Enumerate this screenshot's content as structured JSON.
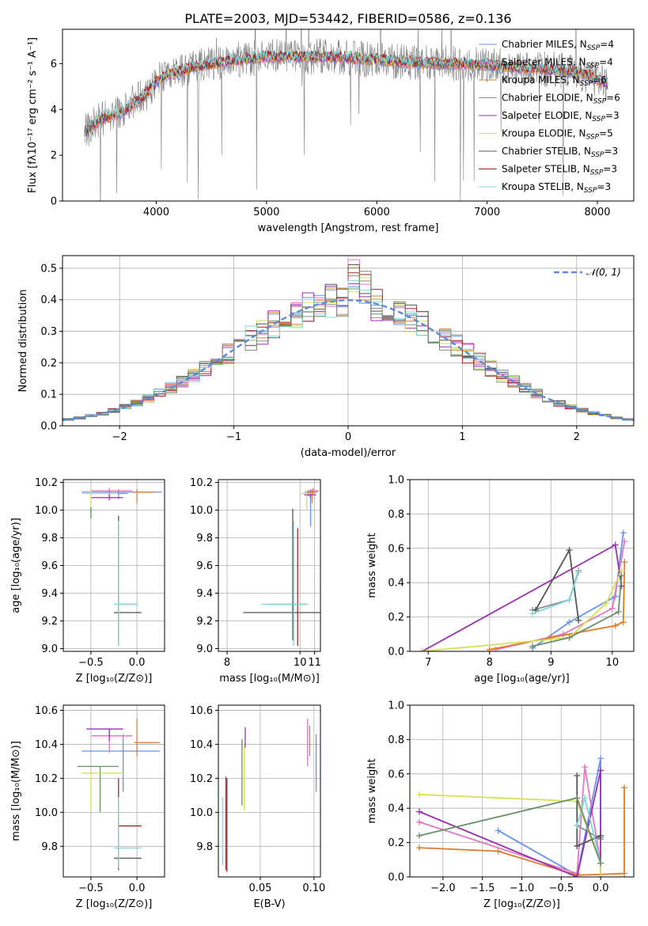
{
  "title": "PLATE=2003, MJD=53442, FIBERID=0586, z=0.136",
  "chart_data": [
    {
      "id": "spectrum",
      "type": "line",
      "xlabel": "wavelength [Angstrom, rest frame]",
      "ylabel": "Flux [fλ10⁻¹⁷ erg cm⁻² s⁻¹ A⁻¹]",
      "xlim": [
        3150,
        8330
      ],
      "ylim": [
        0,
        7.5
      ],
      "xticks": [
        4000,
        5000,
        6000,
        7000,
        8000
      ],
      "yticks": [
        0,
        2,
        4,
        6
      ],
      "grid": false,
      "legend_loc": "top-right",
      "continuum": {
        "x": [
          3350,
          3500,
          3600,
          3700,
          3800,
          3900,
          4000,
          4100,
          4300,
          4500,
          4800,
          5000,
          5300,
          5600,
          5900,
          6200,
          6500,
          6800,
          7100,
          7400,
          7700,
          7900,
          8100
        ],
        "y": [
          3.0,
          3.6,
          3.7,
          3.9,
          4.3,
          4.6,
          5.2,
          5.5,
          5.8,
          6.0,
          6.2,
          6.3,
          6.3,
          6.3,
          6.2,
          6.1,
          6.0,
          6.0,
          5.9,
          5.8,
          5.7,
          5.5,
          5.1
        ]
      },
      "series": [
        {
          "name": "Chabrier MILES, N",
          "sub": "SSP",
          "suffix": "=4",
          "color": "#6495ed"
        },
        {
          "name": "Salpeter MILES, N",
          "sub": "SSP",
          "suffix": "=4",
          "color": "#e377c2"
        },
        {
          "name": "Kroupa MILES, N",
          "sub": "SSP",
          "suffix": "=6",
          "color": "#e07b28"
        },
        {
          "name": "Chabrier ELODIE, N",
          "sub": "SSP",
          "suffix": "=6",
          "color": "#8c8c8c"
        },
        {
          "name": "Salpeter ELODIE, N",
          "sub": "SSP",
          "suffix": "=3",
          "color": "#9b30b0"
        },
        {
          "name": "Kroupa ELODIE, N",
          "sub": "SSP",
          "suffix": "=5",
          "color": "#d4e157"
        },
        {
          "name": "Chabrier STELIB, N",
          "sub": "SSP",
          "suffix": "=3",
          "color": "#555555"
        },
        {
          "name": "Salpeter STELIB, N",
          "sub": "SSP",
          "suffix": "=3",
          "color": "#b22222"
        },
        {
          "name": "Kroupa STELIB, N",
          "sub": "SSP",
          "suffix": "=3",
          "color": "#7fd8d8"
        }
      ]
    },
    {
      "id": "residuals",
      "type": "line",
      "xlabel": "(data-model)/error",
      "ylabel": "Normed distribution",
      "xlim": [
        -2.5,
        2.5
      ],
      "ylim": [
        0,
        0.54
      ],
      "xticks": [
        -2,
        -1,
        0,
        1,
        2
      ],
      "yticks": [
        0.0,
        0.1,
        0.2,
        0.3,
        0.4,
        0.5
      ],
      "grid": true,
      "legend_loc": "top-right",
      "legend": "𝒩(0, 1)",
      "bin_width": 0.1,
      "colors": [
        "#6495ed",
        "#e377c2",
        "#e07b28",
        "#8c8c8c",
        "#9b30b0",
        "#d4e157",
        "#555555",
        "#b22222",
        "#7fd8d8",
        "#6a8f6a"
      ]
    },
    {
      "id": "age_vs_Z",
      "type": "scatter",
      "xlabel": "Z [log₁₀(Z/Z⊙)]",
      "ylabel": "age  [log₁₀(age/yr)]",
      "xlim": [
        -0.8,
        0.3
      ],
      "ylim": [
        8.98,
        10.22
      ],
      "xticks": [
        -0.5,
        0.0
      ],
      "yticks": [
        9.0,
        9.2,
        9.4,
        9.6,
        9.8,
        10.0,
        10.2
      ],
      "grid": true,
      "errorbars": [
        {
          "x": -0.2,
          "y": 10.13,
          "xerr": [
            0.4,
            0.47
          ],
          "yerr": [
            0.05,
            0.02
          ],
          "color": "#6495ed"
        },
        {
          "x": -0.3,
          "y": 10.14,
          "xerr": [
            0.2,
            0.25
          ],
          "yerr": [
            0.02,
            0.02
          ],
          "color": "#e377c2"
        },
        {
          "x": 0.0,
          "y": 10.13,
          "xerr": [
            0.05,
            0.2
          ],
          "yerr": [
            0.08,
            0.02
          ],
          "color": "#e07b28"
        },
        {
          "x": -0.3,
          "y": 10.12,
          "xerr": [
            0.2,
            0.2
          ],
          "yerr": [
            0.02,
            0.02
          ],
          "color": "#8c8c8c"
        },
        {
          "x": -0.3,
          "y": 10.09,
          "xerr": [
            0.2,
            0.15
          ],
          "yerr": [
            0.02,
            0.02
          ],
          "color": "#9b30b0"
        },
        {
          "x": -0.5,
          "y": 10.12,
          "xerr": [
            0.1,
            0.3
          ],
          "yerr": [
            0.18,
            0.02
          ],
          "color": "#d4e157"
        },
        {
          "x": -0.2,
          "y": 9.26,
          "xerr": [
            0.05,
            0.25
          ],
          "yerr": [
            0.2,
            0.7
          ],
          "color": "#555555"
        },
        {
          "x": -0.2,
          "y": 9.32,
          "xerr": [
            0.0,
            0.2
          ],
          "yerr": [
            0.3,
            0.55
          ],
          "color": "#b22222"
        },
        {
          "x": -0.2,
          "y": 9.32,
          "xerr": [
            0.05,
            0.2
          ],
          "yerr": [
            0.3,
            0.6
          ],
          "color": "#7fd8d8"
        },
        {
          "x": -0.5,
          "y": 9.98,
          "xerr": [
            0.0,
            0.0
          ],
          "yerr": [
            0.04,
            0.04
          ],
          "color": "#6a8f6a"
        }
      ]
    },
    {
      "id": "age_vs_mass",
      "type": "scatter",
      "xlabel": "mass [log₁₀(M/M⊙)]",
      "ylabel": "",
      "xlim": [
        7.2,
        10.7
      ],
      "ylim": [
        8.98,
        10.22
      ],
      "xticks": [
        7.5,
        10.0,
        10.5
      ],
      "yticks": [
        9.0,
        9.2,
        9.4,
        9.6,
        9.8,
        10.0,
        10.2
      ],
      "grid": true,
      "errorbars": [
        {
          "x": 10.36,
          "y": 10.13,
          "xerr": [
            0.2,
            0.2
          ],
          "yerr": [
            0.25,
            0.02
          ],
          "color": "#6495ed"
        },
        {
          "x": 10.45,
          "y": 10.14,
          "xerr": [
            0.2,
            0.2
          ],
          "yerr": [
            0.02,
            0.02
          ],
          "color": "#e377c2"
        },
        {
          "x": 10.41,
          "y": 10.13,
          "xerr": [
            0.2,
            0.2
          ],
          "yerr": [
            0.08,
            0.02
          ],
          "color": "#e07b28"
        },
        {
          "x": 10.27,
          "y": 10.12,
          "xerr": [
            0.2,
            0.2
          ],
          "yerr": [
            0.02,
            0.02
          ],
          "color": "#8c8c8c"
        },
        {
          "x": 10.35,
          "y": 10.11,
          "xerr": [
            0.2,
            0.2
          ],
          "yerr": [
            0.02,
            0.02
          ],
          "color": "#9b30b0"
        },
        {
          "x": 10.23,
          "y": 10.12,
          "xerr": [
            0.2,
            0.2
          ],
          "yerr": [
            0.12,
            0.02
          ],
          "color": "#d4e157"
        },
        {
          "x": 9.75,
          "y": 9.26,
          "xerr": [
            1.7,
            1.5
          ],
          "yerr": [
            0.2,
            0.75
          ],
          "color": "#555555"
        },
        {
          "x": 9.92,
          "y": 9.32,
          "xerr": [
            1.0,
            0.3
          ],
          "yerr": [
            0.3,
            0.55
          ],
          "color": "#b22222"
        },
        {
          "x": 9.78,
          "y": 9.32,
          "xerr": [
            1.1,
            0.5
          ],
          "yerr": [
            0.3,
            0.6
          ],
          "color": "#7fd8d8"
        }
      ]
    },
    {
      "id": "weight_vs_age",
      "type": "line",
      "xlabel": "age  [log₁₀(age/yr)]",
      "ylabel": "mass weight",
      "xlim": [
        6.7,
        10.35
      ],
      "ylim": [
        0,
        1
      ],
      "xticks": [
        7,
        8,
        9,
        10
      ],
      "yticks": [
        0.0,
        0.2,
        0.4,
        0.6,
        0.8,
        1.0
      ],
      "grid": true,
      "series": [
        {
          "color": "#6495ed",
          "x": [
            8.7,
            9.3,
            10.05,
            10.18
          ],
          "y": [
            0.02,
            0.17,
            0.32,
            0.69
          ]
        },
        {
          "color": "#e377c2",
          "x": [
            8.1,
            9.2,
            10.0,
            10.2
          ],
          "y": [
            0.01,
            0.1,
            0.25,
            0.64
          ]
        },
        {
          "color": "#e07b28",
          "x": [
            8.0,
            9.0,
            10.05,
            10.18,
            10.2
          ],
          "y": [
            0.01,
            0.08,
            0.15,
            0.17,
            0.52
          ]
        },
        {
          "color": "#8c8c8c",
          "x": [
            8.7,
            9.3,
            9.45
          ],
          "y": [
            0.24,
            0.3,
            0.47
          ]
        },
        {
          "color": "#9b30b0",
          "x": [
            6.9,
            10.05,
            10.15
          ],
          "y": [
            0.0,
            0.62,
            0.38
          ]
        },
        {
          "color": "#d4e157",
          "x": [
            6.9,
            9.3,
            9.9,
            10.15
          ],
          "y": [
            0.0,
            0.08,
            0.28,
            0.47
          ]
        },
        {
          "color": "#555555",
          "x": [
            8.75,
            9.3,
            9.45
          ],
          "y": [
            0.24,
            0.59,
            0.18
          ]
        },
        {
          "color": "#7fd8d8",
          "x": [
            8.7,
            9.3,
            9.45
          ],
          "y": [
            0.22,
            0.3,
            0.46
          ]
        },
        {
          "color": "#6a8f6a",
          "x": [
            8.7,
            9.3,
            10.1,
            10.15
          ],
          "y": [
            0.03,
            0.08,
            0.23,
            0.44
          ]
        }
      ]
    },
    {
      "id": "mass_vs_Z",
      "type": "scatter",
      "xlabel": "Z [log₁₀(Z/Z⊙)]",
      "ylabel": "mass [log₁₀(M/M⊙)]",
      "xlim": [
        -0.8,
        0.3
      ],
      "ylim": [
        9.62,
        10.63
      ],
      "xticks": [
        -0.5,
        0.0
      ],
      "yticks": [
        9.8,
        10.0,
        10.2,
        10.4,
        10.6
      ],
      "grid": true,
      "errorbars": [
        {
          "x": -0.15,
          "y": 10.36,
          "xerr": [
            0.45,
            0.4
          ],
          "yerr": [
            0.24,
            0.1
          ],
          "color": "#6495ed"
        },
        {
          "x": -0.3,
          "y": 10.45,
          "xerr": [
            0.2,
            0.25
          ],
          "yerr": [
            0.1,
            0.04
          ],
          "color": "#e377c2"
        },
        {
          "x": 0.0,
          "y": 10.41,
          "xerr": [
            0.03,
            0.25
          ],
          "yerr": [
            0.08,
            0.14
          ],
          "color": "#e07b28"
        },
        {
          "x": -0.4,
          "y": 10.27,
          "xerr": [
            0.25,
            0.2
          ],
          "yerr": [
            0.27,
            0.0
          ],
          "color": "#6a8f6a"
        },
        {
          "x": -0.3,
          "y": 10.49,
          "xerr": [
            0.25,
            0.15
          ],
          "yerr": [
            0.07,
            0.0
          ],
          "color": "#9b30b0"
        },
        {
          "x": -0.5,
          "y": 10.23,
          "xerr": [
            0.1,
            0.35
          ],
          "yerr": [
            0.22,
            0.0
          ],
          "color": "#d4e157"
        },
        {
          "x": -0.2,
          "y": 9.73,
          "xerr": [
            0.05,
            0.25
          ],
          "yerr": [
            0.06,
            0.0
          ],
          "color": "#555555"
        },
        {
          "x": -0.2,
          "y": 9.92,
          "xerr": [
            0.0,
            0.25
          ],
          "yerr": [
            0.26,
            0.28
          ],
          "color": "#b22222"
        },
        {
          "x": -0.2,
          "y": 9.79,
          "xerr": [
            0.05,
            0.25
          ],
          "yerr": [
            0.12,
            0.3
          ],
          "color": "#7fd8d8"
        }
      ]
    },
    {
      "id": "mass_vs_EBV",
      "type": "scatter",
      "xlabel": "E(B-V)",
      "ylabel": "",
      "xlim": [
        0.011,
        0.106
      ],
      "ylim": [
        9.62,
        10.63
      ],
      "xticks": [
        0.05,
        0.1
      ],
      "yticks": [
        9.8,
        10.0,
        10.2,
        10.4,
        10.6
      ],
      "grid": true,
      "errorbars": [
        {
          "x": 0.102,
          "y": 10.36,
          "xerr": [
            0,
            0
          ],
          "yerr": [
            0.24,
            0.1
          ],
          "color": "#6495ed"
        },
        {
          "x": 0.094,
          "y": 10.45,
          "xerr": [
            0,
            0
          ],
          "yerr": [
            0.18,
            0.1
          ],
          "color": "#e377c2"
        },
        {
          "x": 0.096,
          "y": 10.41,
          "xerr": [
            0,
            0
          ],
          "yerr": [
            0.08,
            0.1
          ],
          "color": "#e07b28"
        },
        {
          "x": 0.033,
          "y": 10.27,
          "xerr": [
            0,
            0
          ],
          "yerr": [
            0.23,
            0.16
          ],
          "color": "#6a8f6a"
        },
        {
          "x": 0.036,
          "y": 10.45,
          "xerr": [
            0,
            0
          ],
          "yerr": [
            0.07,
            0.05
          ],
          "color": "#9b30b0"
        },
        {
          "x": 0.035,
          "y": 10.23,
          "xerr": [
            0,
            0
          ],
          "yerr": [
            0.22,
            0.16
          ],
          "color": "#d4e157"
        },
        {
          "x": 0.018,
          "y": 9.95,
          "xerr": [
            0,
            0
          ],
          "yerr": [
            0.29,
            0.26
          ],
          "color": "#555555"
        },
        {
          "x": 0.019,
          "y": 9.92,
          "xerr": [
            0,
            0
          ],
          "yerr": [
            0.27,
            0.28
          ],
          "color": "#b22222"
        },
        {
          "x": 0.015,
          "y": 9.79,
          "xerr": [
            0,
            0
          ],
          "yerr": [
            0.1,
            0.3
          ],
          "color": "#7fd8d8"
        }
      ]
    },
    {
      "id": "weight_vs_Z",
      "type": "line",
      "xlabel": "Z [log₁₀(Z/Z⊙)]",
      "ylabel": "mass weight",
      "xlim": [
        -2.42,
        0.42
      ],
      "ylim": [
        0,
        1
      ],
      "xticks": [
        -2.0,
        -1.5,
        -1.0,
        -0.5,
        0.0
      ],
      "yticks": [
        0.0,
        0.2,
        0.4,
        0.6,
        0.8,
        1.0
      ],
      "grid": true,
      "series": [
        {
          "color": "#6495ed",
          "x": [
            -1.3,
            -0.3,
            0.0,
            0.0
          ],
          "y": [
            0.27,
            0.01,
            0.69,
            0.23
          ]
        },
        {
          "color": "#e377c2",
          "x": [
            -2.3,
            -0.3,
            -0.2,
            0.0
          ],
          "y": [
            0.32,
            0.02,
            0.64,
            0.08
          ]
        },
        {
          "color": "#e07b28",
          "x": [
            -2.3,
            -1.3,
            -0.3,
            0.3,
            0.3
          ],
          "y": [
            0.17,
            0.15,
            0.01,
            0.02,
            0.52
          ]
        },
        {
          "color": "#8c8c8c",
          "x": [
            -0.3,
            0.0
          ],
          "y": [
            0.3,
            0.22
          ]
        },
        {
          "color": "#9b30b0",
          "x": [
            -2.3,
            -0.3,
            0.0,
            0.0
          ],
          "y": [
            0.38,
            0.0,
            0.62,
            0.0
          ]
        },
        {
          "color": "#d4e157",
          "x": [
            -2.3,
            -0.3,
            0.0,
            0.0
          ],
          "y": [
            0.48,
            0.44,
            0.08,
            0.0
          ]
        },
        {
          "color": "#555555",
          "x": [
            -0.3,
            -0.3,
            0.0
          ],
          "y": [
            0.59,
            0.18,
            0.24
          ]
        },
        {
          "color": "#7fd8d8",
          "x": [
            -0.3,
            -0.2,
            0.0
          ],
          "y": [
            0.3,
            0.46,
            0.08
          ]
        },
        {
          "color": "#6a8f6a",
          "x": [
            -2.3,
            -0.3,
            0.0
          ],
          "y": [
            0.24,
            0.46,
            0.08
          ]
        }
      ]
    }
  ]
}
